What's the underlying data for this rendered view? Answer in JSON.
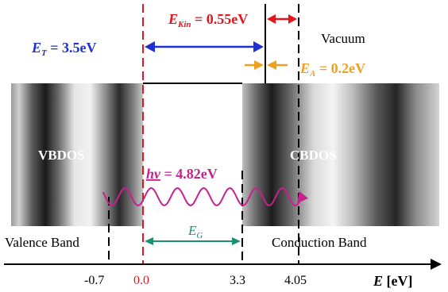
{
  "labels": {
    "ekin_symbol": "E",
    "ekin_sub": "Kin",
    "ekin_value": " = 0.55eV",
    "et_symbol": "E",
    "et_sub": "T",
    "et_value": " = 3.5eV",
    "vacuum": "Vacuum",
    "ea_symbol": "E",
    "ea_sub": "A",
    "ea_value": " = 0.2eV",
    "vbdos": "VBDOS",
    "cbdos": "CBDOS",
    "hv_symbol": "hv",
    "hv_value": " = 4.82eV",
    "eg_symbol": "E",
    "eg_sub": "G",
    "valence_band": "Valence Band",
    "conduction_band": "Conduction Band",
    "axis_symbol": "E",
    "axis_unit": " [eV]"
  },
  "ticks": [
    "-0.7",
    "0.0",
    "3.3",
    "4.05"
  ],
  "colors": {
    "ekin": "#e8141c",
    "et": "#1f2fd0",
    "ea": "#f0a020",
    "hv": "#c8208c",
    "eg": "#1a9070",
    "zero_tick": "#e8141c"
  }
}
